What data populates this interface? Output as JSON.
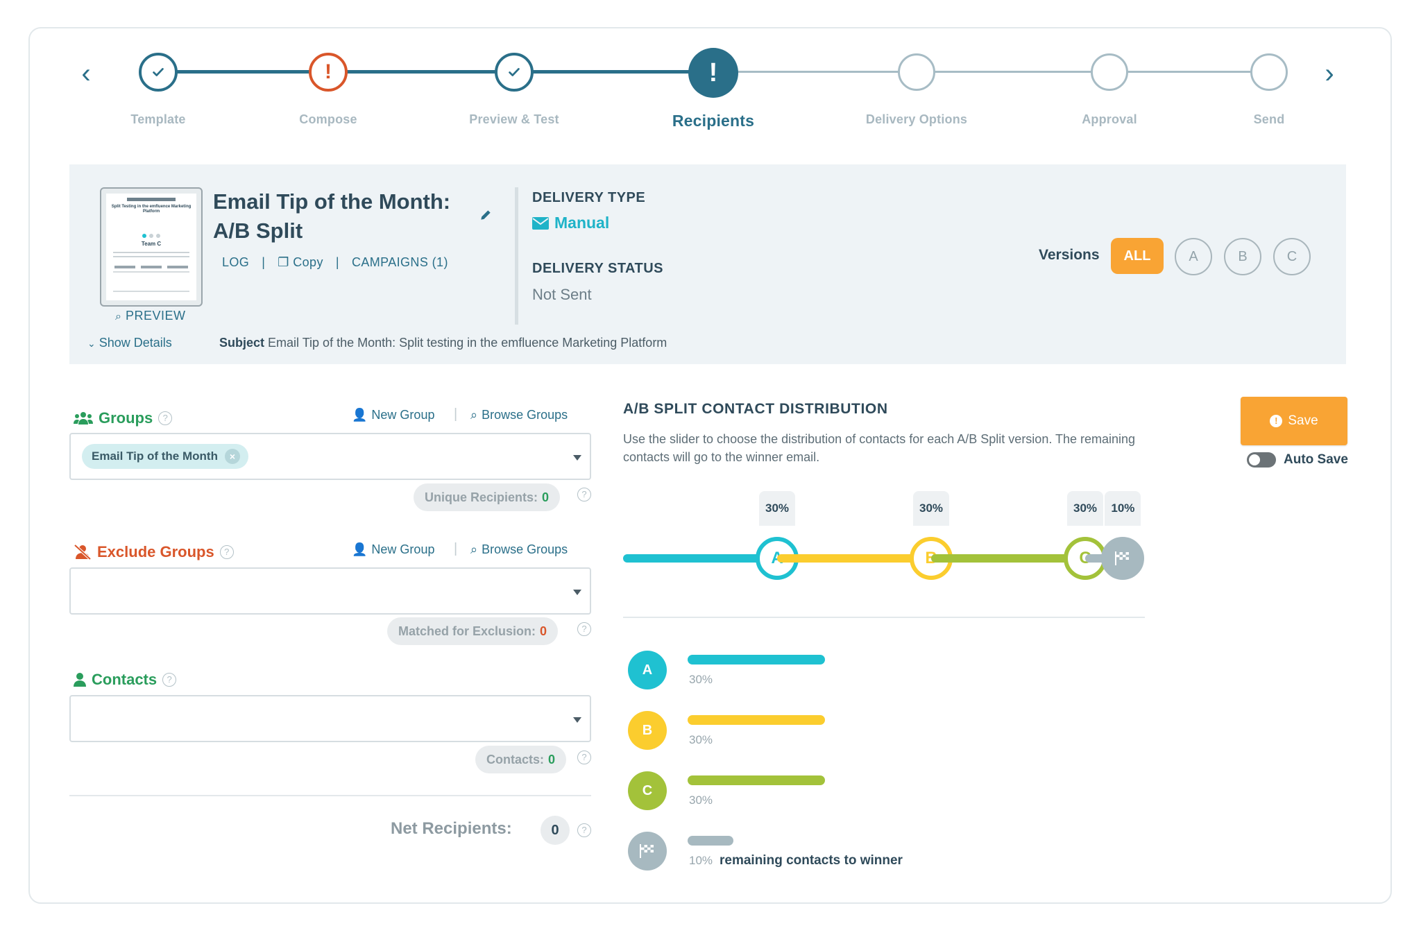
{
  "stepper": {
    "steps": [
      {
        "label": "Template",
        "state": "complete"
      },
      {
        "label": "Compose",
        "state": "error"
      },
      {
        "label": "Preview & Test",
        "state": "complete"
      },
      {
        "label": "Recipients",
        "state": "active"
      },
      {
        "label": "Delivery Options",
        "state": "pending"
      },
      {
        "label": "Approval",
        "state": "pending"
      },
      {
        "label": "Send",
        "state": "pending"
      }
    ]
  },
  "email": {
    "title": "Email Tip of the Month: A/B Split",
    "links": {
      "log": "LOG",
      "copy": "Copy",
      "campaigns": "CAMPAIGNS (1)"
    },
    "preview": "PREVIEW",
    "show_details": "Show Details",
    "subject_label": "Subject",
    "subject_value": "Email Tip of the Month: Split testing in the emfluence Marketing Platform",
    "delivery_type_label": "DELIVERY TYPE",
    "delivery_type": "Manual",
    "delivery_status_label": "DELIVERY STATUS",
    "delivery_status": "Not Sent",
    "versions_label": "Versions",
    "versions": [
      "ALL",
      "A",
      "B",
      "C"
    ],
    "thumbnail": {
      "headline": "Split Testing in the emfluence Marketing Platform",
      "team": "Team C"
    }
  },
  "groups": {
    "title": "Groups",
    "new_group": "New Group",
    "browse_groups": "Browse Groups",
    "selected": [
      "Email Tip of the Month"
    ],
    "count_label": "Unique Recipients:",
    "count": "0"
  },
  "exclude": {
    "title": "Exclude Groups",
    "new_group": "New Group",
    "browse_groups": "Browse Groups",
    "count_label": "Matched for Exclusion:",
    "count": "0"
  },
  "contacts": {
    "title": "Contacts",
    "count_label": "Contacts:",
    "count": "0"
  },
  "net": {
    "label": "Net Recipients:",
    "value": "0"
  },
  "ab_split": {
    "title": "A/B SPLIT CONTACT DISTRIBUTION",
    "description": "Use the slider to choose the distribution of contacts for each A/B Split version. The remaining contacts will go to the winner email.",
    "save": "Save",
    "auto_save": "Auto Save",
    "auto_save_on": false,
    "distribution": [
      {
        "version": "A",
        "percent": 30,
        "label": "30%",
        "color": "#1fc1d1"
      },
      {
        "version": "B",
        "percent": 30,
        "label": "30%",
        "color": "#fbcd2e"
      },
      {
        "version": "C",
        "percent": 30,
        "label": "30%",
        "color": "#a3c23a"
      },
      {
        "version": "winner",
        "percent": 10,
        "label": "10%",
        "color": "#a7b9c0",
        "icon": "checkered-flag-icon"
      }
    ],
    "winner_text": "remaining contacts to winner"
  },
  "colors": {
    "accent": "#2a6f89",
    "orange": "#f9a434",
    "error": "#d9562a",
    "success": "#2a9d5c",
    "pending": "#a7bcc5"
  }
}
